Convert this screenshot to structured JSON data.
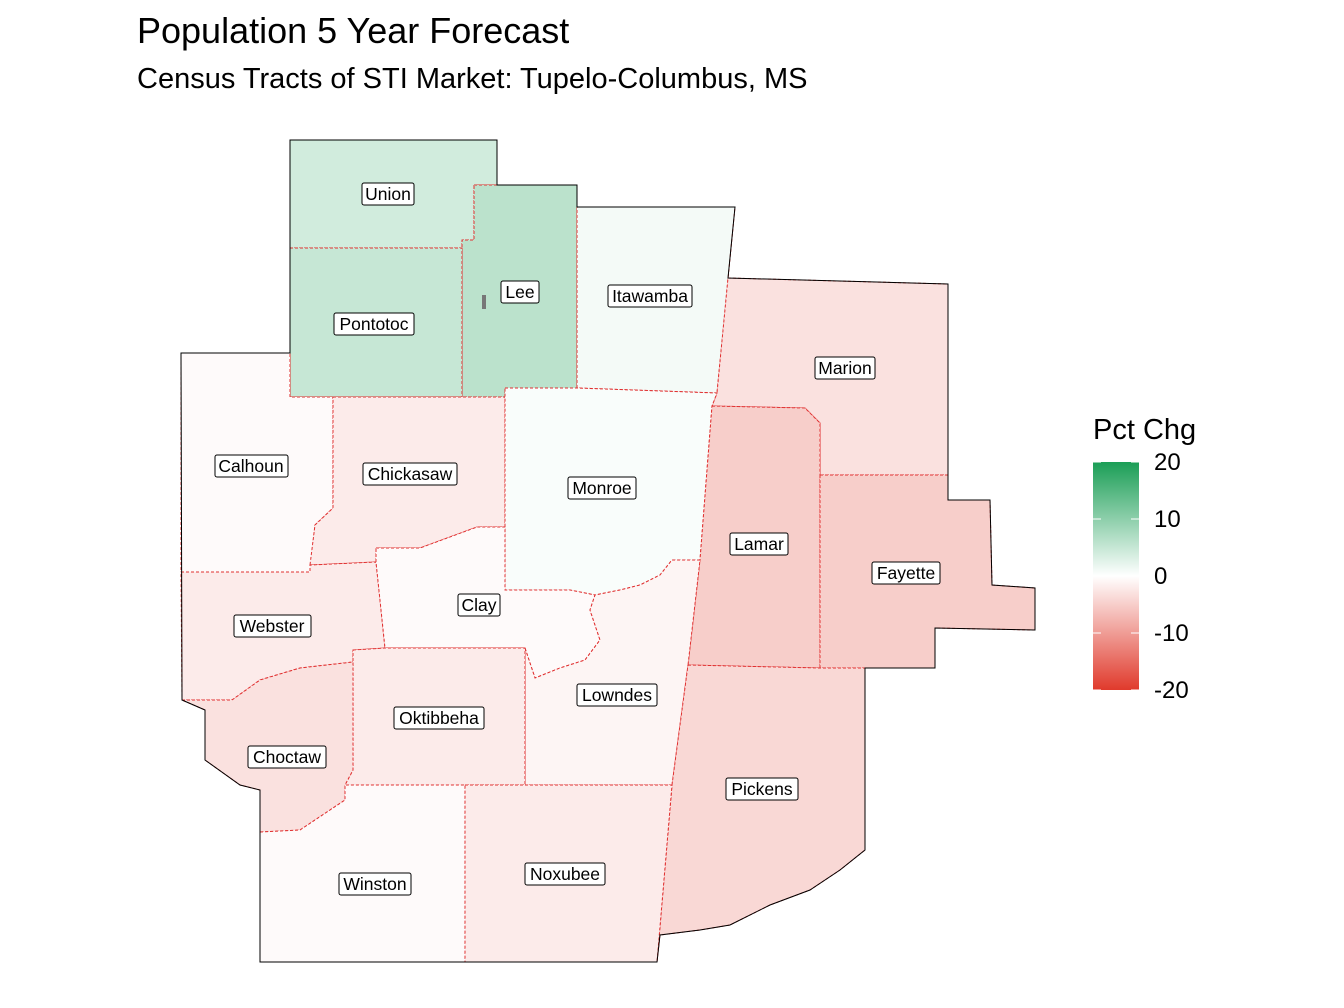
{
  "title": "Population 5 Year Forecast",
  "subtitle": "Census Tracts of STI Market: Tupelo-Columbus, MS",
  "legend": {
    "title": "Pct Chg",
    "ticks": [
      "20",
      "10",
      "0",
      "-10",
      "-20"
    ],
    "tick_values": [
      20,
      10,
      0,
      -10,
      -20
    ],
    "range": [
      -20,
      20
    ],
    "colors": {
      "high": "#1b9e56",
      "mid": "#ffffff",
      "low": "#e03a2c"
    }
  },
  "counties": [
    {
      "name": "Union",
      "pct_chg": 4
    },
    {
      "name": "Lee",
      "pct_chg": 6
    },
    {
      "name": "Itawamba",
      "pct_chg": 1
    },
    {
      "name": "Pontotoc",
      "pct_chg": 5
    },
    {
      "name": "Marion",
      "pct_chg": -3
    },
    {
      "name": "Calhoun",
      "pct_chg": -0.5
    },
    {
      "name": "Chickasaw",
      "pct_chg": -2
    },
    {
      "name": "Monroe",
      "pct_chg": 0.5
    },
    {
      "name": "Lamar",
      "pct_chg": -5
    },
    {
      "name": "Fayette",
      "pct_chg": -5
    },
    {
      "name": "Webster",
      "pct_chg": -2
    },
    {
      "name": "Clay",
      "pct_chg": -0.5
    },
    {
      "name": "Lowndes",
      "pct_chg": -1
    },
    {
      "name": "Oktibbeha",
      "pct_chg": -2
    },
    {
      "name": "Choctaw",
      "pct_chg": -3
    },
    {
      "name": "Pickens",
      "pct_chg": -4
    },
    {
      "name": "Winston",
      "pct_chg": -0.5
    },
    {
      "name": "Noxubee",
      "pct_chg": -2
    }
  ]
}
